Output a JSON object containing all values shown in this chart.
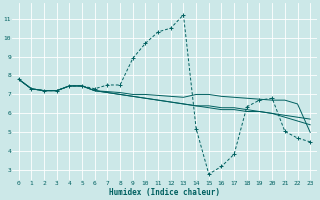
{
  "xlabel": "Humidex (Indice chaleur)",
  "bg_color": "#cce8e8",
  "grid_color": "#ffffff",
  "line_color": "#006060",
  "xlim": [
    -0.5,
    23.5
  ],
  "ylim": [
    2.5,
    11.8
  ],
  "yticks": [
    3,
    4,
    5,
    6,
    7,
    8,
    9,
    10,
    11
  ],
  "xticks": [
    0,
    1,
    2,
    3,
    4,
    5,
    6,
    7,
    8,
    9,
    10,
    11,
    12,
    13,
    14,
    15,
    16,
    17,
    18,
    19,
    20,
    21,
    22,
    23
  ],
  "series": [
    {
      "x": [
        0,
        1,
        2,
        3,
        4,
        5,
        6,
        7,
        8,
        9,
        10,
        11,
        12,
        13,
        14,
        15,
        16,
        17,
        18,
        19,
        20,
        21,
        22,
        23
      ],
      "y": [
        7.8,
        7.3,
        7.2,
        7.2,
        7.45,
        7.45,
        7.3,
        7.5,
        7.5,
        8.9,
        9.7,
        10.3,
        10.5,
        11.2,
        5.2,
        2.8,
        3.2,
        3.85,
        6.35,
        6.7,
        6.8,
        5.05,
        4.7,
        4.5
      ],
      "linestyle": "--",
      "marker": true
    },
    {
      "x": [
        0,
        1,
        2,
        3,
        4,
        5,
        6,
        7,
        8,
        9,
        10,
        11,
        12,
        13,
        14,
        15,
        16,
        17,
        18,
        19,
        20,
        21,
        22,
        23
      ],
      "y": [
        7.8,
        7.3,
        7.2,
        7.2,
        7.45,
        7.45,
        7.2,
        7.1,
        7.0,
        6.9,
        6.8,
        6.7,
        6.6,
        6.5,
        6.4,
        6.4,
        6.3,
        6.3,
        6.2,
        6.1,
        6.0,
        5.8,
        5.6,
        5.4
      ],
      "linestyle": "-",
      "marker": false
    },
    {
      "x": [
        0,
        1,
        2,
        3,
        4,
        5,
        6,
        7,
        8,
        9,
        10,
        11,
        12,
        13,
        14,
        15,
        16,
        17,
        18,
        19,
        20,
        21,
        22,
        23
      ],
      "y": [
        7.8,
        7.3,
        7.2,
        7.2,
        7.45,
        7.45,
        7.2,
        7.15,
        7.1,
        7.0,
        7.0,
        6.95,
        6.9,
        6.85,
        7.0,
        7.0,
        6.9,
        6.85,
        6.8,
        6.75,
        6.7,
        6.7,
        6.5,
        5.0
      ],
      "linestyle": "-",
      "marker": false
    },
    {
      "x": [
        0,
        1,
        2,
        3,
        4,
        5,
        6,
        7,
        8,
        9,
        10,
        11,
        12,
        13,
        14,
        15,
        16,
        17,
        18,
        19,
        20,
        21,
        22,
        23
      ],
      "y": [
        7.8,
        7.3,
        7.2,
        7.2,
        7.45,
        7.45,
        7.2,
        7.1,
        7.0,
        6.9,
        6.8,
        6.7,
        6.6,
        6.5,
        6.4,
        6.3,
        6.2,
        6.2,
        6.1,
        6.1,
        6.0,
        5.9,
        5.8,
        5.7
      ],
      "linestyle": "-",
      "marker": false
    }
  ]
}
